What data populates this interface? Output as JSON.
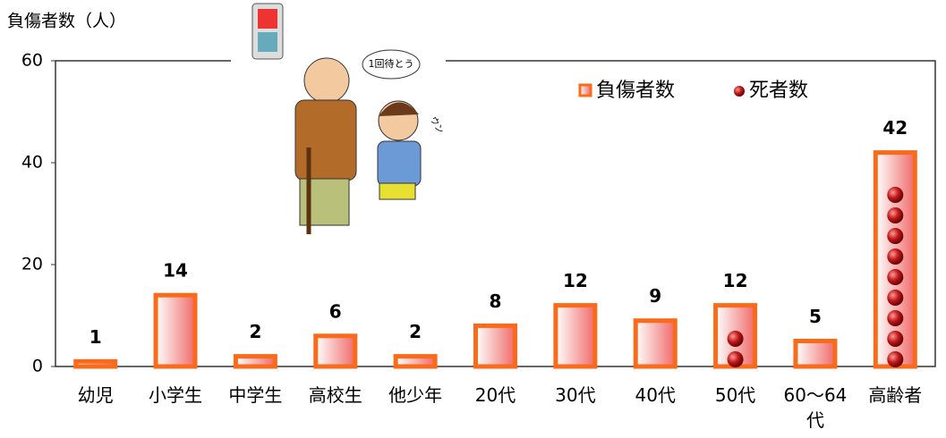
{
  "chart_data": {
    "type": "bar",
    "y_label": "負傷者数（人）",
    "categories": [
      "幼児",
      "小学生",
      "中学生",
      "高校生",
      "他少年",
      "20代",
      "30代",
      "40代",
      "50代",
      "60～64代",
      "高齢者"
    ],
    "series": [
      {
        "name": "負傷者数",
        "color": "#f96b1a",
        "values": [
          1,
          14,
          2,
          6,
          2,
          8,
          12,
          9,
          12,
          5,
          42
        ]
      },
      {
        "name": "死者数",
        "color": "#b01010",
        "values": [
          0,
          0,
          0,
          0,
          0,
          0,
          0,
          0,
          2,
          0,
          9
        ]
      }
    ],
    "ylim": [
      0,
      60
    ],
    "yticks": [
      0,
      20,
      40,
      60
    ],
    "annotations": [
      "1回待とう",
      "ウン"
    ]
  }
}
